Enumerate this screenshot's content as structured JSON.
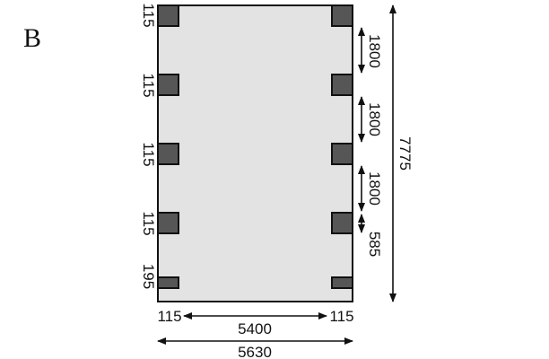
{
  "panel_label": "B",
  "colors": {
    "floor": "#e3e3e3",
    "outline": "#111111",
    "post": "#565656",
    "background": "#ffffff"
  },
  "post_sizes_left": [
    "115",
    "115",
    "115",
    "115",
    "195"
  ],
  "post_spacings_right": [
    "1800",
    "1800",
    "1800",
    "585"
  ],
  "total_length": "7775",
  "bottom_dims": {
    "left_post": "115",
    "inner_width": "5400",
    "right_post": "115",
    "total_width": "5630"
  }
}
